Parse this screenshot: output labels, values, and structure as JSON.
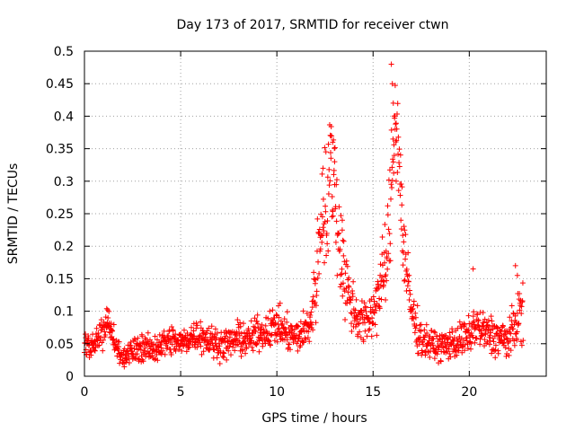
{
  "chart_data": {
    "type": "scatter",
    "title": "Day 173 of 2017, SRMTID for receiver ctwn",
    "xlabel": "GPS time / hours",
    "ylabel": "SRMTID / TECUs",
    "xlim": [
      0,
      24
    ],
    "ylim": [
      0,
      0.5
    ],
    "x_ticks": [
      0,
      5,
      10,
      15,
      20
    ],
    "x_tick_labels": [
      "0",
      "5",
      "10",
      "15",
      "20"
    ],
    "y_ticks": [
      0,
      0.05,
      0.1,
      0.15,
      0.2,
      0.25,
      0.3,
      0.35,
      0.4,
      0.45,
      0.5
    ],
    "y_tick_labels": [
      "0",
      "0.05",
      "0.1",
      "0.15",
      "0.2",
      "0.25",
      "0.3",
      "0.35",
      "0.4",
      "0.45",
      "0.5"
    ],
    "grid": true,
    "marker": "+",
    "marker_color": "#ff0000",
    "series": [
      {
        "name": "SRMTID",
        "x": [
          0.0,
          0.5,
          1.0,
          1.2,
          1.5,
          2.0,
          2.3,
          2.6,
          3.0,
          3.5,
          4.0,
          4.5,
          5.0,
          5.5,
          6.0,
          6.5,
          7.0,
          7.5,
          8.0,
          8.5,
          9.0,
          9.5,
          10.0,
          10.5,
          11.0,
          11.5,
          11.8,
          12.0,
          12.2,
          12.4,
          12.6,
          12.8,
          13.0,
          13.2,
          13.4,
          13.6,
          13.8,
          14.0,
          14.3,
          14.6,
          15.0,
          15.3,
          15.6,
          15.8,
          16.0,
          16.1,
          16.2,
          16.4,
          16.6,
          16.8,
          17.0,
          17.3,
          17.6,
          18.0,
          18.5,
          19.0,
          19.5,
          20.0,
          20.3,
          20.6,
          21.0,
          21.5,
          22.0,
          22.3,
          22.6,
          22.8
        ],
        "y": [
          0.045,
          0.05,
          0.07,
          0.09,
          0.055,
          0.03,
          0.035,
          0.04,
          0.045,
          0.04,
          0.05,
          0.055,
          0.05,
          0.06,
          0.065,
          0.055,
          0.05,
          0.05,
          0.06,
          0.055,
          0.065,
          0.07,
          0.08,
          0.065,
          0.06,
          0.07,
          0.09,
          0.14,
          0.2,
          0.28,
          0.24,
          0.33,
          0.3,
          0.22,
          0.18,
          0.14,
          0.12,
          0.1,
          0.09,
          0.08,
          0.1,
          0.13,
          0.16,
          0.2,
          0.32,
          0.39,
          0.42,
          0.3,
          0.2,
          0.14,
          0.1,
          0.07,
          0.055,
          0.05,
          0.045,
          0.05,
          0.055,
          0.06,
          0.08,
          0.07,
          0.065,
          0.06,
          0.055,
          0.07,
          0.1,
          0.09
        ],
        "spread": [
          0.02,
          0.02,
          0.025,
          0.02,
          0.02,
          0.018,
          0.018,
          0.02,
          0.02,
          0.02,
          0.022,
          0.022,
          0.022,
          0.022,
          0.025,
          0.022,
          0.022,
          0.022,
          0.025,
          0.022,
          0.025,
          0.025,
          0.03,
          0.025,
          0.025,
          0.03,
          0.04,
          0.06,
          0.08,
          0.1,
          0.09,
          0.1,
          0.1,
          0.08,
          0.07,
          0.06,
          0.05,
          0.04,
          0.04,
          0.035,
          0.04,
          0.05,
          0.06,
          0.08,
          0.1,
          0.1,
          0.09,
          0.08,
          0.07,
          0.05,
          0.04,
          0.03,
          0.025,
          0.022,
          0.022,
          0.022,
          0.025,
          0.03,
          0.035,
          0.03,
          0.03,
          0.03,
          0.03,
          0.035,
          0.04,
          0.04
        ],
        "highlights": {
          "x": [
            12.4,
            12.8,
            12.9,
            13.0,
            13.4,
            15.95,
            16.0,
            16.05,
            16.1,
            16.15,
            16.2,
            20.2,
            22.4,
            22.5
          ],
          "y": [
            0.32,
            0.37,
            0.36,
            0.33,
            0.24,
            0.48,
            0.45,
            0.42,
            0.4,
            0.38,
            0.3,
            0.165,
            0.17,
            0.155
          ]
        }
      }
    ]
  }
}
